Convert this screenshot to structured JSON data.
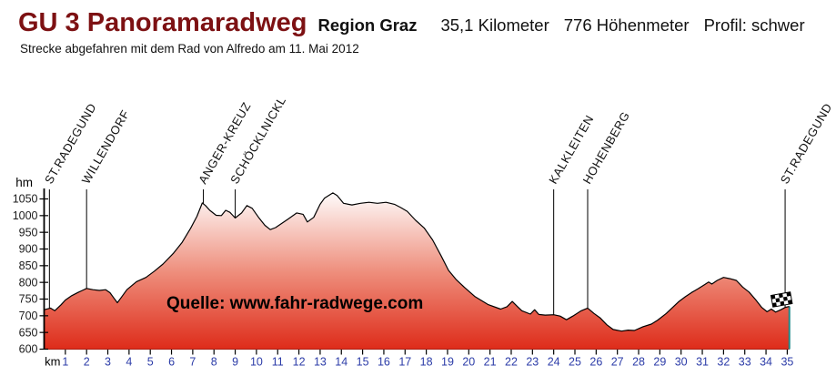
{
  "header": {
    "title": "GU 3 Panoramaradweg",
    "region": "Region Graz",
    "distance": "35,1 Kilometer",
    "elevation_gain": "776 Höhenmeter",
    "profile": "Profil: schwer",
    "subtitle": "Strecke abgefahren mit dem Rad von Alfredo am 11. Mai 2012"
  },
  "watermark": "Quelle: www.fahr-radwege.com",
  "colors": {
    "title_text": "#7d1113",
    "header_text": "#111111",
    "area_gradient_top": "#ffffff",
    "area_gradient_mid": "#ee8d7b",
    "area_gradient_bottom": "#de2c1a",
    "area_bottom_edge": "#a81d12",
    "profile_line": "#000000",
    "axis": "#000000",
    "x_tick_label": "#2c3ca8",
    "y_tick_label": "#1c1c1c",
    "marker_label": "#111111",
    "watermark_text": "#000000",
    "finish_line": "#1d8a8a"
  },
  "chart_data": {
    "type": "area",
    "title": "",
    "xlabel": "km",
    "ylabel": "hm",
    "xlim": [
      0,
      35.1
    ],
    "ylim": [
      600,
      1050
    ],
    "grid": false,
    "y_ticks": [
      600,
      650,
      700,
      750,
      800,
      850,
      900,
      950,
      1000,
      1050
    ],
    "x_ticks": [
      1,
      2,
      3,
      4,
      5,
      6,
      7,
      8,
      9,
      10,
      11,
      12,
      13,
      14,
      15,
      16,
      17,
      18,
      19,
      20,
      21,
      22,
      23,
      24,
      25,
      26,
      27,
      28,
      29,
      30,
      31,
      32,
      33,
      34,
      35
    ],
    "markers": [
      {
        "km": 0.25,
        "label": "ST.RADEGUND"
      },
      {
        "km": 2.0,
        "label": "WILLENDORF"
      },
      {
        "km": 7.5,
        "label": "ANGER-KREUZ"
      },
      {
        "km": 9.0,
        "label": "SCHÖCKLNICKL"
      },
      {
        "km": 24.0,
        "label": "KALKLEITEN"
      },
      {
        "km": 25.6,
        "label": "HOHENBERG"
      },
      {
        "km": 34.9,
        "label": "ST.RADEGUND"
      }
    ],
    "finish_flag_km": 35.1,
    "profile": [
      [
        0,
        718
      ],
      [
        0.3,
        723
      ],
      [
        0.5,
        715
      ],
      [
        0.8,
        733
      ],
      [
        1.0,
        747
      ],
      [
        1.3,
        760
      ],
      [
        1.6,
        770
      ],
      [
        1.8,
        776
      ],
      [
        2.0,
        782
      ],
      [
        2.3,
        778
      ],
      [
        2.6,
        776
      ],
      [
        2.9,
        778
      ],
      [
        3.1,
        769
      ],
      [
        3.3,
        752
      ],
      [
        3.45,
        739
      ],
      [
        3.6,
        752
      ],
      [
        3.9,
        778
      ],
      [
        4.35,
        802
      ],
      [
        4.8,
        815
      ],
      [
        5.2,
        834
      ],
      [
        5.6,
        855
      ],
      [
        6.1,
        888
      ],
      [
        6.5,
        920
      ],
      [
        6.9,
        962
      ],
      [
        7.2,
        998
      ],
      [
        7.45,
        1038
      ],
      [
        7.6,
        1030
      ],
      [
        7.8,
        1016
      ],
      [
        8.1,
        1001
      ],
      [
        8.35,
        1000
      ],
      [
        8.55,
        1016
      ],
      [
        8.75,
        1010
      ],
      [
        9.0,
        993
      ],
      [
        9.3,
        1008
      ],
      [
        9.55,
        1030
      ],
      [
        9.8,
        1022
      ],
      [
        10.1,
        995
      ],
      [
        10.4,
        971
      ],
      [
        10.65,
        958
      ],
      [
        10.9,
        964
      ],
      [
        11.2,
        977
      ],
      [
        11.5,
        990
      ],
      [
        11.9,
        1008
      ],
      [
        12.2,
        1004
      ],
      [
        12.4,
        981
      ],
      [
        12.7,
        995
      ],
      [
        13.0,
        1034
      ],
      [
        13.2,
        1052
      ],
      [
        13.4,
        1060
      ],
      [
        13.6,
        1068
      ],
      [
        13.8,
        1060
      ],
      [
        14.1,
        1037
      ],
      [
        14.5,
        1032
      ],
      [
        14.9,
        1037
      ],
      [
        15.3,
        1040
      ],
      [
        15.7,
        1037
      ],
      [
        16.1,
        1040
      ],
      [
        16.5,
        1034
      ],
      [
        16.8,
        1024
      ],
      [
        17.1,
        1013
      ],
      [
        17.5,
        986
      ],
      [
        17.9,
        963
      ],
      [
        18.3,
        927
      ],
      [
        18.7,
        879
      ],
      [
        19.05,
        836
      ],
      [
        19.4,
        809
      ],
      [
        19.8,
        785
      ],
      [
        20.3,
        757
      ],
      [
        20.9,
        734
      ],
      [
        21.5,
        720
      ],
      [
        21.8,
        727
      ],
      [
        22.05,
        743
      ],
      [
        22.3,
        727
      ],
      [
        22.5,
        715
      ],
      [
        22.9,
        705
      ],
      [
        23.1,
        718
      ],
      [
        23.3,
        704
      ],
      [
        23.6,
        702
      ],
      [
        24.0,
        703
      ],
      [
        24.3,
        699
      ],
      [
        24.6,
        688
      ],
      [
        24.9,
        699
      ],
      [
        25.3,
        715
      ],
      [
        25.6,
        723
      ],
      [
        25.9,
        707
      ],
      [
        26.2,
        693
      ],
      [
        26.5,
        673
      ],
      [
        26.8,
        659
      ],
      [
        27.2,
        654
      ],
      [
        27.5,
        657
      ],
      [
        27.8,
        656
      ],
      [
        28.2,
        667
      ],
      [
        28.6,
        675
      ],
      [
        28.9,
        687
      ],
      [
        29.3,
        707
      ],
      [
        29.6,
        725
      ],
      [
        29.9,
        743
      ],
      [
        30.2,
        757
      ],
      [
        30.5,
        770
      ],
      [
        30.8,
        781
      ],
      [
        31.1,
        793
      ],
      [
        31.3,
        801
      ],
      [
        31.45,
        795
      ],
      [
        31.7,
        806
      ],
      [
        32.0,
        815
      ],
      [
        32.3,
        811
      ],
      [
        32.6,
        806
      ],
      [
        32.9,
        786
      ],
      [
        33.2,
        771
      ],
      [
        33.5,
        749
      ],
      [
        33.8,
        725
      ],
      [
        34.05,
        712
      ],
      [
        34.25,
        720
      ],
      [
        34.45,
        711
      ],
      [
        34.7,
        718
      ],
      [
        34.9,
        725
      ],
      [
        35.1,
        728
      ]
    ]
  }
}
